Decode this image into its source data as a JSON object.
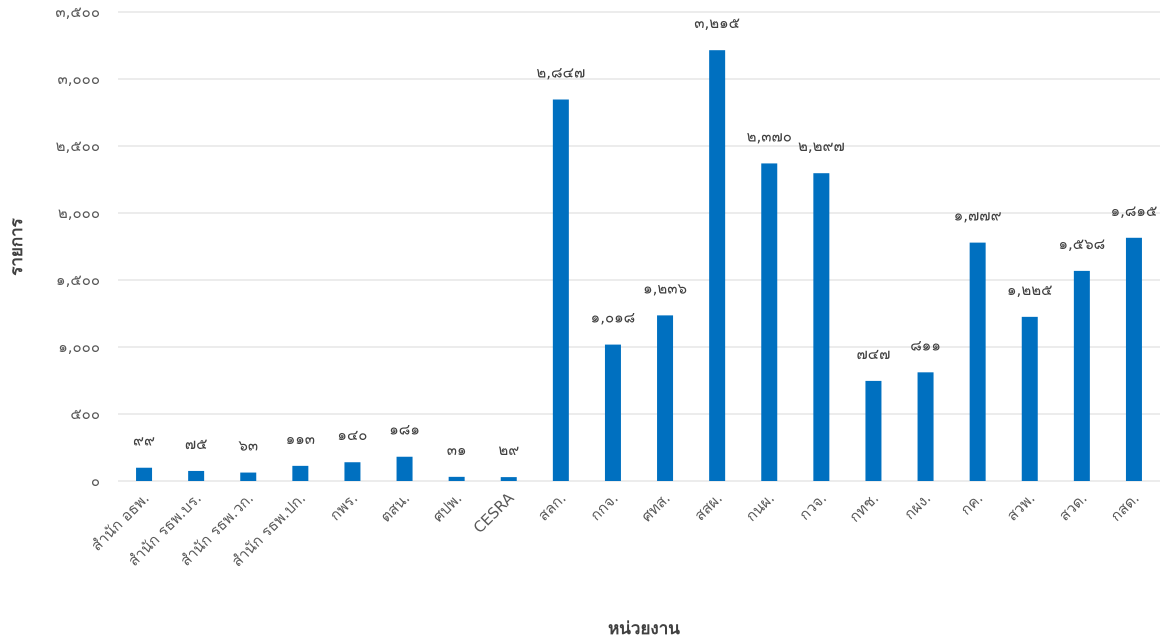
{
  "chart_data": {
    "type": "bar",
    "title": "",
    "xlabel": "หน่วยงาน",
    "ylabel": "รายการ",
    "ylim": [
      0,
      3500
    ],
    "y_ticks": [
      0,
      500,
      1000,
      1500,
      2000,
      2500,
      3000,
      3500
    ],
    "y_tick_labels": [
      "๐",
      "๕๐๐",
      "๑,๐๐๐",
      "๑,๕๐๐",
      "๒,๐๐๐",
      "๒,๕๐๐",
      "๓,๐๐๐",
      "๓,๕๐๐"
    ],
    "grid": true,
    "legend": "none",
    "bar_color": "#0070c0",
    "categories": [
      "สำนัก อธพ.",
      "สำนัก รธพ.บร.",
      "สำนัก รธพ.วก.",
      "สำนัก รธพ.ปก.",
      "กพร.",
      "ตสน.",
      "ศปพ.",
      "CESRA",
      "สลก.",
      "กกจ.",
      "ศทส.",
      "สสผ.",
      "กนผ.",
      "กวจ.",
      "กทช.",
      "กผง.",
      "กค.",
      "สวพ.",
      "สวด.",
      "กสด."
    ],
    "values": [
      99,
      75,
      63,
      113,
      140,
      181,
      31,
      29,
      2847,
      1018,
      1236,
      3215,
      2370,
      2297,
      747,
      811,
      1779,
      1225,
      1568,
      1815
    ],
    "data_labels": [
      "๙๙",
      "๗๕",
      "๖๓",
      "๑๑๓",
      "๑๔๐",
      "๑๘๑",
      "๓๑",
      "๒๙",
      "๒,๘๔๗",
      "๑,๐๑๘",
      "๑,๒๓๖",
      "๓,๒๑๕",
      "๒,๓๗๐",
      "๒,๒๙๗",
      "๗๔๗",
      "๘๑๑",
      "๑,๗๗๙",
      "๑,๒๒๕",
      "๑,๕๖๘",
      "๑,๘๑๕"
    ]
  }
}
